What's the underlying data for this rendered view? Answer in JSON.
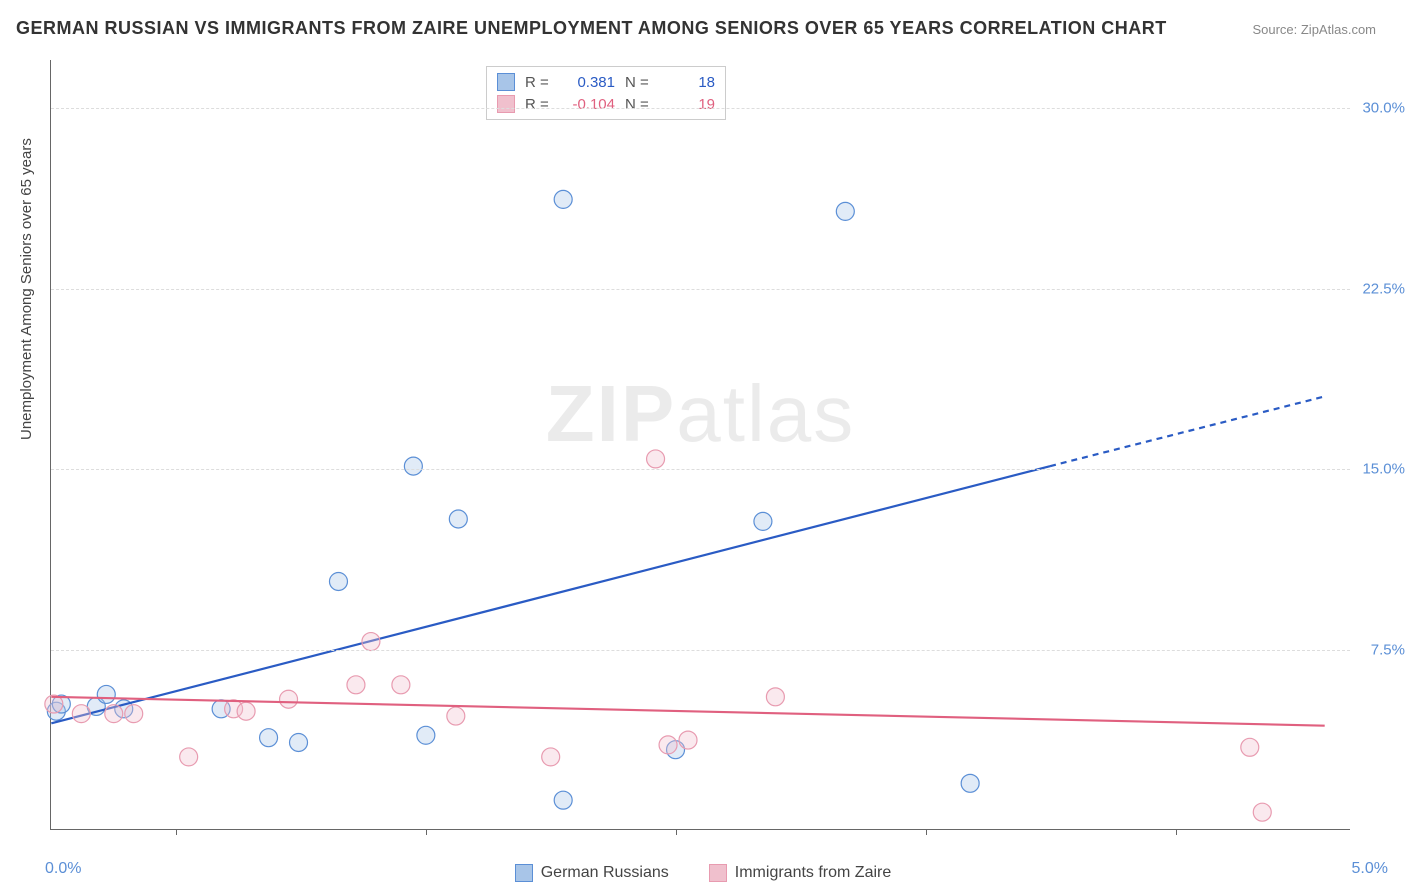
{
  "title": "GERMAN RUSSIAN VS IMMIGRANTS FROM ZAIRE UNEMPLOYMENT AMONG SENIORS OVER 65 YEARS CORRELATION CHART",
  "source_label": "Source: ZipAtlas.com",
  "ylabel": "Unemployment Among Seniors over 65 years",
  "watermark_prefix": "ZIP",
  "watermark_suffix": "atlas",
  "chart": {
    "type": "scatter",
    "xlim": [
      0.0,
      5.2
    ],
    "ylim": [
      0.0,
      32.0
    ],
    "yticks": [
      7.5,
      15.0,
      22.5,
      30.0
    ],
    "ytick_labels": [
      "7.5%",
      "15.0%",
      "22.5%",
      "30.0%"
    ],
    "xticks": [
      0.5,
      1.5,
      2.5,
      3.5,
      4.5
    ],
    "xmin_label": "0.0%",
    "xmax_label": "5.0%",
    "background_color": "#ffffff",
    "grid_color": "#dddddd",
    "axis_color": "#666666",
    "ytick_label_color": "#5b8fd6",
    "xlabel_color": "#5b8fd6",
    "point_radius": 9,
    "point_fill_opacity": 0.35,
    "line_width": 2.2
  },
  "series": [
    {
      "name": "German Russians",
      "color_stroke": "#5b8fd6",
      "color_fill": "#a8c5e8",
      "trend_color": "#2a5bc4",
      "R": "0.381",
      "N": "18",
      "points": [
        [
          0.02,
          4.9
        ],
        [
          0.04,
          5.2
        ],
        [
          0.18,
          5.1
        ],
        [
          0.22,
          5.6
        ],
        [
          0.29,
          5.0
        ],
        [
          0.68,
          5.0
        ],
        [
          0.87,
          3.8
        ],
        [
          0.99,
          3.6
        ],
        [
          1.15,
          10.3
        ],
        [
          1.45,
          15.1
        ],
        [
          1.5,
          3.9
        ],
        [
          1.63,
          12.9
        ],
        [
          2.05,
          26.2
        ],
        [
          2.05,
          1.2
        ],
        [
          2.5,
          3.3
        ],
        [
          2.85,
          12.8
        ],
        [
          3.18,
          25.7
        ],
        [
          3.68,
          1.9
        ]
      ],
      "trend": {
        "x1": 0.0,
        "y1": 4.4,
        "x2": 4.0,
        "y2": 15.1,
        "x2_dash": 5.1,
        "y2_dash": 18.0
      }
    },
    {
      "name": "Immigrants from Zaire",
      "color_stroke": "#e89bb0",
      "color_fill": "#f0c0cd",
      "trend_color": "#e0607f",
      "R": "-0.104",
      "N": "19",
      "points": [
        [
          0.01,
          5.2
        ],
        [
          0.12,
          4.8
        ],
        [
          0.25,
          4.8
        ],
        [
          0.33,
          4.8
        ],
        [
          0.55,
          3.0
        ],
        [
          0.73,
          5.0
        ],
        [
          0.78,
          4.9
        ],
        [
          0.95,
          5.4
        ],
        [
          1.22,
          6.0
        ],
        [
          1.28,
          7.8
        ],
        [
          1.4,
          6.0
        ],
        [
          1.62,
          4.7
        ],
        [
          2.0,
          3.0
        ],
        [
          2.42,
          15.4
        ],
        [
          2.47,
          3.5
        ],
        [
          2.55,
          3.7
        ],
        [
          2.9,
          5.5
        ],
        [
          4.8,
          3.4
        ],
        [
          4.85,
          0.7
        ]
      ],
      "trend": {
        "x1": 0.0,
        "y1": 5.5,
        "x2": 5.1,
        "y2": 4.3
      }
    }
  ],
  "legend_top": {
    "R_label": "R  =",
    "N_label": "N  ="
  },
  "legend_bottom": [
    {
      "label": "German Russians",
      "stroke": "#5b8fd6",
      "fill": "#a8c5e8"
    },
    {
      "label": "Immigrants from Zaire",
      "stroke": "#e89bb0",
      "fill": "#f0c0cd"
    }
  ]
}
